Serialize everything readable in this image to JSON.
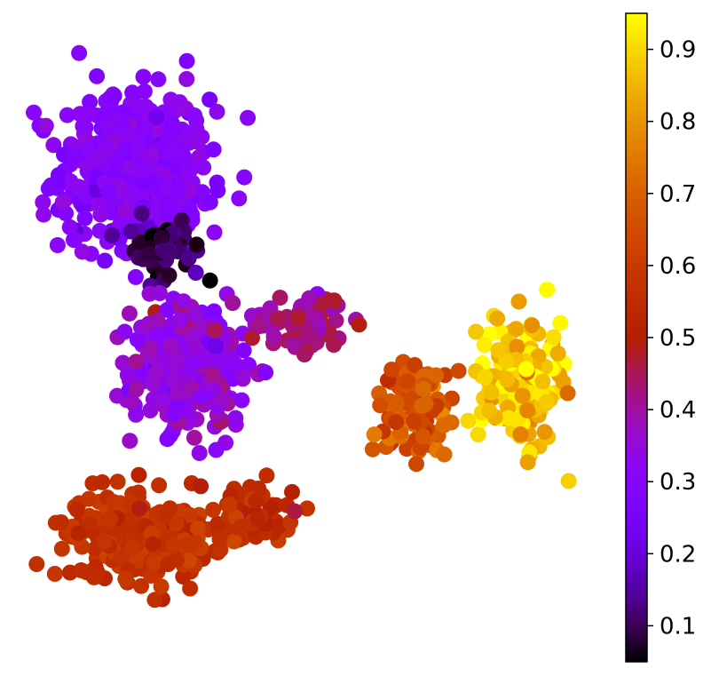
{
  "chart_data": {
    "type": "scatter",
    "title": "",
    "xlabel": "",
    "ylabel": "",
    "axes_visible": false,
    "grid": false,
    "colormap": "gnuplot",
    "color_range": [
      0.05,
      0.95
    ],
    "colorbar": {
      "placement": "right",
      "ticks": [
        0.1,
        0.2,
        0.3,
        0.4,
        0.5,
        0.6,
        0.7,
        0.8,
        0.9
      ],
      "tick_labels": [
        "0.1",
        "0.2",
        "0.3",
        "0.4",
        "0.5",
        "0.6",
        "0.7",
        "0.8",
        "0.9"
      ]
    },
    "x_range": [
      0,
      100
    ],
    "y_range": [
      0,
      100
    ],
    "clusters": [
      {
        "region": "upper-left lobe",
        "center": [
          18,
          78
        ],
        "spread": [
          11,
          11
        ],
        "count": 520,
        "value_mean": 0.3,
        "value_sd": 0.025
      },
      {
        "region": "upper-left dark core",
        "center": [
          23,
          64
        ],
        "spread": [
          6,
          5
        ],
        "count": 60,
        "value_mean": 0.1,
        "value_sd": 0.04
      },
      {
        "region": "central stem",
        "center": [
          28,
          45
        ],
        "spread": [
          9,
          9
        ],
        "count": 330,
        "value_mean": 0.35,
        "value_sd": 0.04
      },
      {
        "region": "bridge to right",
        "center": [
          48,
          52
        ],
        "spread": [
          6,
          4
        ],
        "count": 90,
        "value_mean": 0.43,
        "value_sd": 0.04
      },
      {
        "region": "lower-left base",
        "center": [
          18,
          16
        ],
        "spread": [
          11,
          6
        ],
        "count": 260,
        "value_mean": 0.57,
        "value_sd": 0.03
      },
      {
        "region": "lower arm",
        "center": [
          38,
          20
        ],
        "spread": [
          7,
          4
        ],
        "count": 70,
        "value_mean": 0.55,
        "value_sd": 0.03
      },
      {
        "region": "right transition",
        "center": [
          68,
          38
        ],
        "spread": [
          5,
          7
        ],
        "count": 130,
        "value_mean": 0.66,
        "value_sd": 0.05
      },
      {
        "region": "right lobe",
        "center": [
          86,
          42
        ],
        "spread": [
          6,
          9
        ],
        "count": 190,
        "value_mean": 0.88,
        "value_sd": 0.05
      }
    ]
  }
}
